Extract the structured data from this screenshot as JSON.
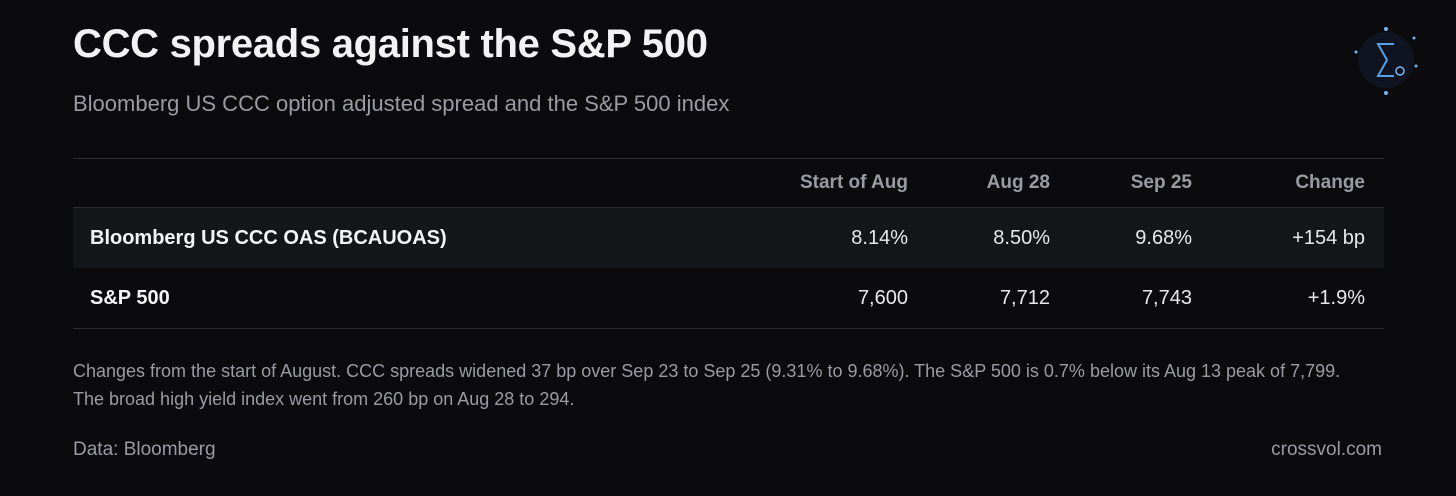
{
  "header": {
    "title": "CCC spreads against the S&P 500",
    "subtitle": "Bloomberg US CCC option adjusted spread and the S&P 500 index"
  },
  "table": {
    "columns": [
      "Start of Aug",
      "Aug 28",
      "Sep 25",
      "Change"
    ],
    "rows": [
      {
        "label": "Bloomberg US CCC OAS (BCAUOAS)",
        "cells": [
          "8.14%",
          "8.50%",
          "9.68%",
          "+154 bp"
        ]
      },
      {
        "label": "S&P 500",
        "cells": [
          "7,600",
          "7,712",
          "7,743",
          "+1.9%"
        ]
      }
    ]
  },
  "note": "Changes from the start of August. CCC spreads widened 37 bp over Sep 23 to Sep 25 (9.31% to 9.68%). The S&P 500 is 0.7% below its Aug 13 peak of 7,799. The broad high yield index went from 260 bp on Aug 28 to 294.",
  "footer": {
    "source": "Data: Bloomberg",
    "site": "crossvol.com"
  }
}
